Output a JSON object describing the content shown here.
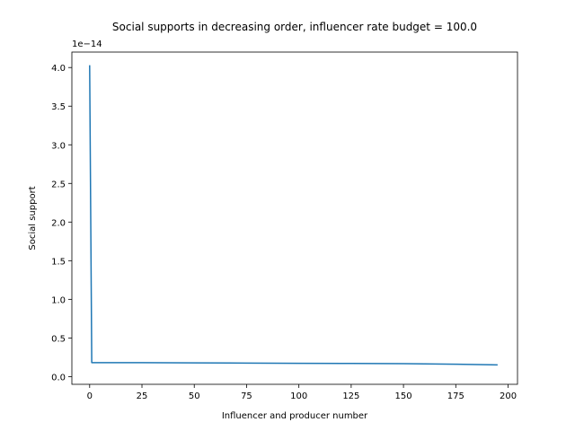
{
  "chart_data": {
    "type": "line",
    "title": "Social supports in decreasing order, influencer rate budget = 100.0",
    "xlabel": "Influencer and producer number",
    "ylabel": "Social support",
    "y_offset_label": "1e−14",
    "xlim": [
      -8.5,
      204.5
    ],
    "ylim": [
      -0.1,
      4.2
    ],
    "x_ticks": [
      0,
      25,
      50,
      75,
      100,
      125,
      150,
      175,
      200
    ],
    "x_tick_labels": [
      "0",
      "25",
      "50",
      "75",
      "100",
      "125",
      "150",
      "175",
      "200"
    ],
    "y_ticks": [
      0.0,
      0.5,
      1.0,
      1.5,
      2.0,
      2.5,
      3.0,
      3.5,
      4.0
    ],
    "y_tick_labels": [
      "0.0",
      "0.5",
      "1.0",
      "1.5",
      "2.0",
      "2.5",
      "3.0",
      "3.5",
      "4.0"
    ],
    "grid": false,
    "legend": "none",
    "series": [
      {
        "color": "#1f77b4",
        "x": [
          0,
          1,
          2,
          25,
          50,
          75,
          100,
          125,
          150,
          175,
          195
        ],
        "y": [
          4.03,
          0.18,
          0.18,
          0.18,
          0.177,
          0.175,
          0.172,
          0.17,
          0.168,
          0.16,
          0.152
        ]
      }
    ]
  }
}
